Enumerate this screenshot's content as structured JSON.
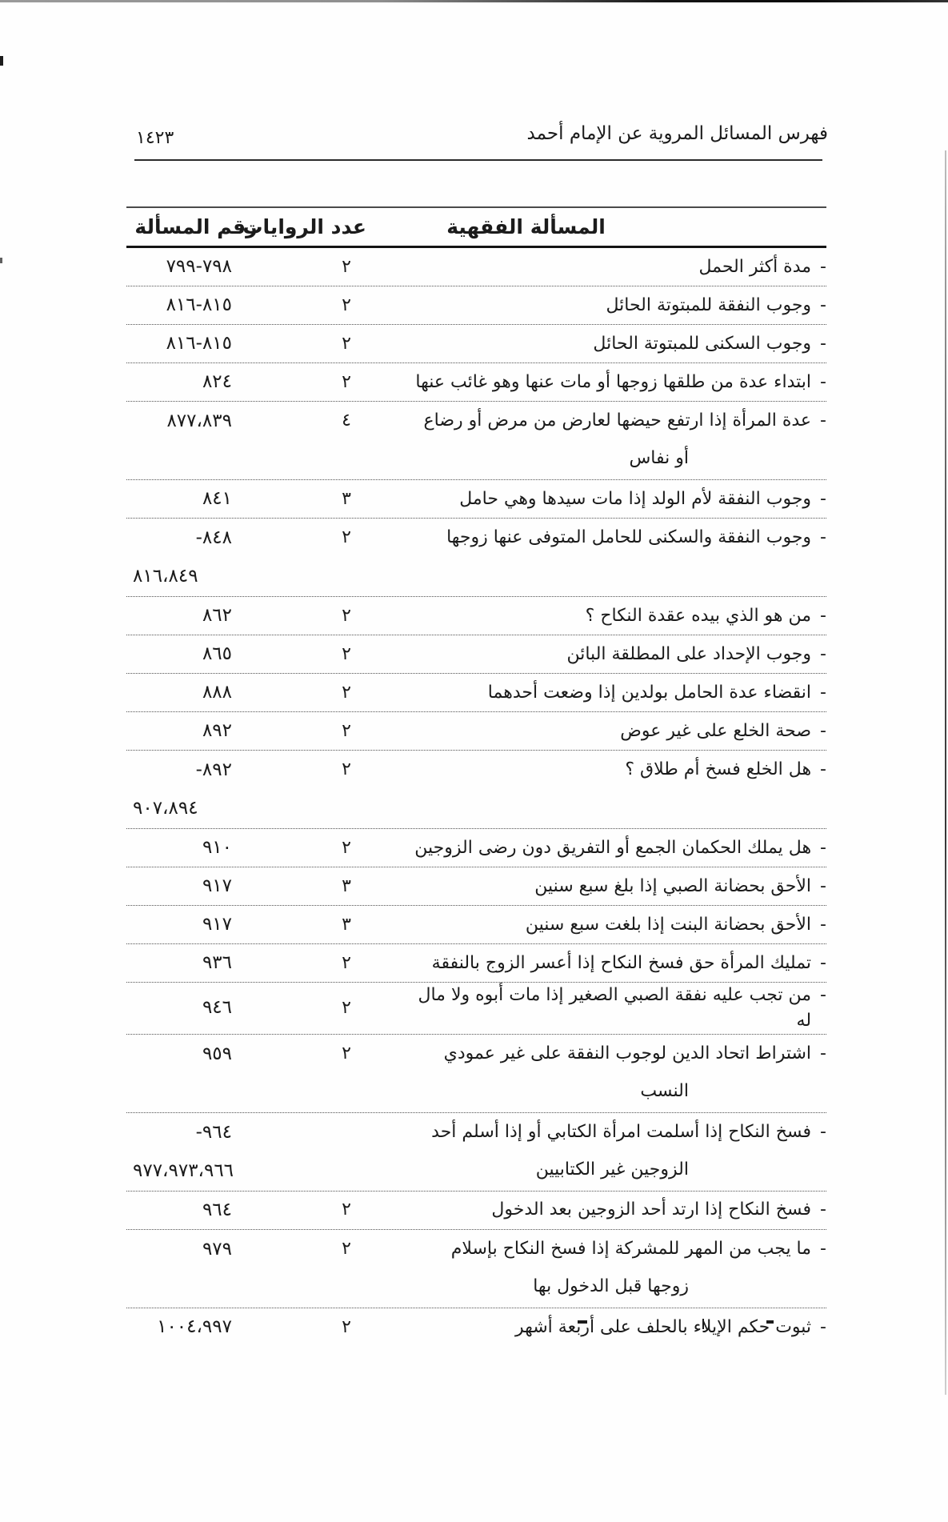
{
  "page": {
    "header_title": "فهرس المسائل المروية عن الإمام أحمد",
    "page_number": "١٤٢٣"
  },
  "table": {
    "dash": "-",
    "columns": {
      "issue": "المسألة الفقهية",
      "count": "عدد الروايات",
      "number": "رقم المسألة"
    },
    "rows": [
      {
        "issue": "مدة أكثر الحمل",
        "count": "٢",
        "number": "٧٩٩-٧٩٨"
      },
      {
        "issue": "وجوب النفقة للمبتوتة الحائل",
        "count": "٢",
        "number": "٨١٦-٨١٥"
      },
      {
        "issue": "وجوب السكنى للمبتوتة الحائل",
        "count": "٢",
        "number": "٨١٦-٨١٥"
      },
      {
        "issue": "ابتداء عدة من طلقها زوجها أو مات عنها وهو غائب عنها",
        "count": "٢",
        "number": "٨٢٤"
      },
      {
        "issue": "عدة المرأة إذا ارتفع حيضها لعارض من مرض أو رضاع",
        "issue2": "أو نفاس",
        "count": "٤",
        "number": "٨٧٧،٨٣٩"
      },
      {
        "issue": "وجوب النفقة لأم الولد إذا مات سيدها وهي حامل",
        "count": "٣",
        "number": "٨٤١"
      },
      {
        "issue": "وجوب النفقة والسكنى للحامل المتوفى عنها زوجها",
        "count": "٢",
        "number": "-٨٤٨",
        "number2": "٨١٦،٨٤٩"
      },
      {
        "issue": "من هو الذي بيده عقدة النكاح ؟",
        "count": "٢",
        "number": "٨٦٢"
      },
      {
        "issue": "وجوب الإحداد على المطلقة البائن",
        "count": "٢",
        "number": "٨٦٥"
      },
      {
        "issue": "انقضاء عدة الحامل بولدين إذا وضعت أحدهما",
        "count": "٢",
        "number": "٨٨٨"
      },
      {
        "issue": "صحة الخلع على غير عوض",
        "count": "٢",
        "number": "٨٩٢"
      },
      {
        "issue": "هل الخلع فسخ أم طلاق ؟",
        "count": "٢",
        "number": "-٨٩٢",
        "number2": "٩٠٧،٨٩٤"
      },
      {
        "issue": "هل يملك الحكمان الجمع أو التفريق دون رضى الزوجين",
        "count": "٢",
        "number": "٩١٠"
      },
      {
        "issue": "الأحق بحضانة الصبي إذا بلغ سبع سنين",
        "count": "٣",
        "number": "٩١٧"
      },
      {
        "issue": "الأحق بحضانة البنت إذا بلغت سبع سنين",
        "count": "٣",
        "number": "٩١٧"
      },
      {
        "issue": "تمليك المرأة حق فسخ النكاح إذا أعسر الزوج بالنفقة",
        "count": "٢",
        "number": "٩٣٦"
      },
      {
        "issue": "من تجب عليه نفقة الصبي الصغير إذا مات أبوه ولا مال له",
        "count": "٢",
        "number": "٩٤٦"
      },
      {
        "issue": "اشتراط اتحاد الدين لوجوب النفقة على غير عمودي",
        "issue2": "النسب",
        "count": "٢",
        "number": "٩٥٩"
      },
      {
        "issue": "فسخ النكاح إذا أسلمت امرأة الكتابي أو إذا أسلم أحد",
        "issue2": "الزوجين غير الكتابيين",
        "count": "",
        "number": "-٩٦٤",
        "number2": "٩٧٧،٩٧٣،٩٦٦"
      },
      {
        "issue": "فسخ النكاح إذا ارتد أحد الزوجين بعد الدخول",
        "count": "٢",
        "number": "٩٦٤"
      },
      {
        "issue": "ما يجب من المهر للمشركة إذا فسخ النكاح بإسلام",
        "issue2": "زوجها قبل الدخول بها",
        "count": "٢",
        "number": "٩٧٩"
      },
      {
        "issue": "ثبوت حكم الإيلاء بالحلف على أربعة أشهر",
        "count": "٢",
        "number": "١٠٠٤،٩٩٧"
      }
    ]
  }
}
